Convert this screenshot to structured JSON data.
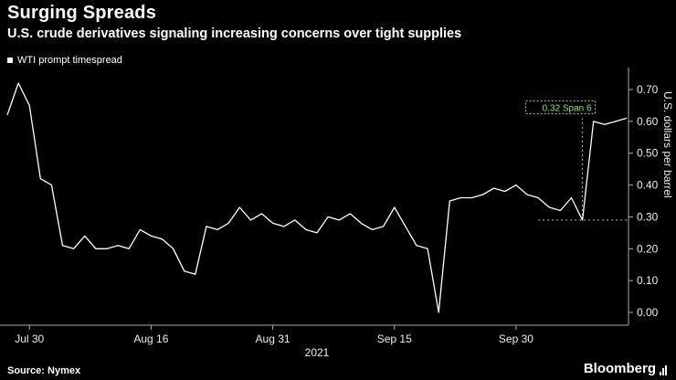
{
  "chart_data": {
    "type": "line",
    "title": "Surging Spreads",
    "subtitle": "U.S. crude derivatives signaling increasing concerns over tight supplies",
    "ylabel": "U.S. dollars per barrel",
    "xlabel": "",
    "x_year": "2021",
    "ylim": [
      -0.05,
      0.75
    ],
    "yticks": [
      0.0,
      0.1,
      0.2,
      0.3,
      0.4,
      0.5,
      0.6,
      0.7
    ],
    "grid": "off",
    "legend_position": "top-left",
    "background_color": "#000000",
    "x_ticks": [
      {
        "index": 2,
        "label": "Jul 30"
      },
      {
        "index": 13,
        "label": "Aug 16"
      },
      {
        "index": 24,
        "label": "Aug 31"
      },
      {
        "index": 35,
        "label": "Sep 15"
      },
      {
        "index": 46,
        "label": "Sep 30"
      }
    ],
    "series": [
      {
        "name": "WTI prompt timespread",
        "color": "#ffffff",
        "values": [
          0.62,
          0.72,
          0.65,
          0.42,
          0.4,
          0.21,
          0.2,
          0.24,
          0.2,
          0.2,
          0.21,
          0.2,
          0.26,
          0.24,
          0.23,
          0.2,
          0.13,
          0.12,
          0.27,
          0.26,
          0.28,
          0.33,
          0.29,
          0.31,
          0.28,
          0.27,
          0.29,
          0.26,
          0.25,
          0.3,
          0.29,
          0.31,
          0.28,
          0.26,
          0.27,
          0.33,
          0.27,
          0.21,
          0.2,
          0.0,
          0.35,
          0.36,
          0.36,
          0.37,
          0.39,
          0.38,
          0.4,
          0.37,
          0.36,
          0.33,
          0.32,
          0.36,
          0.29,
          0.6,
          0.59,
          0.6,
          0.61
        ]
      }
    ],
    "annotation": {
      "label": "0.32 Span 6",
      "color": "#a3e636",
      "x_index": 52,
      "from": 0.29,
      "to": 0.61
    }
  },
  "footer": {
    "source": "Source: Nymex",
    "brand": "Bloomberg"
  }
}
